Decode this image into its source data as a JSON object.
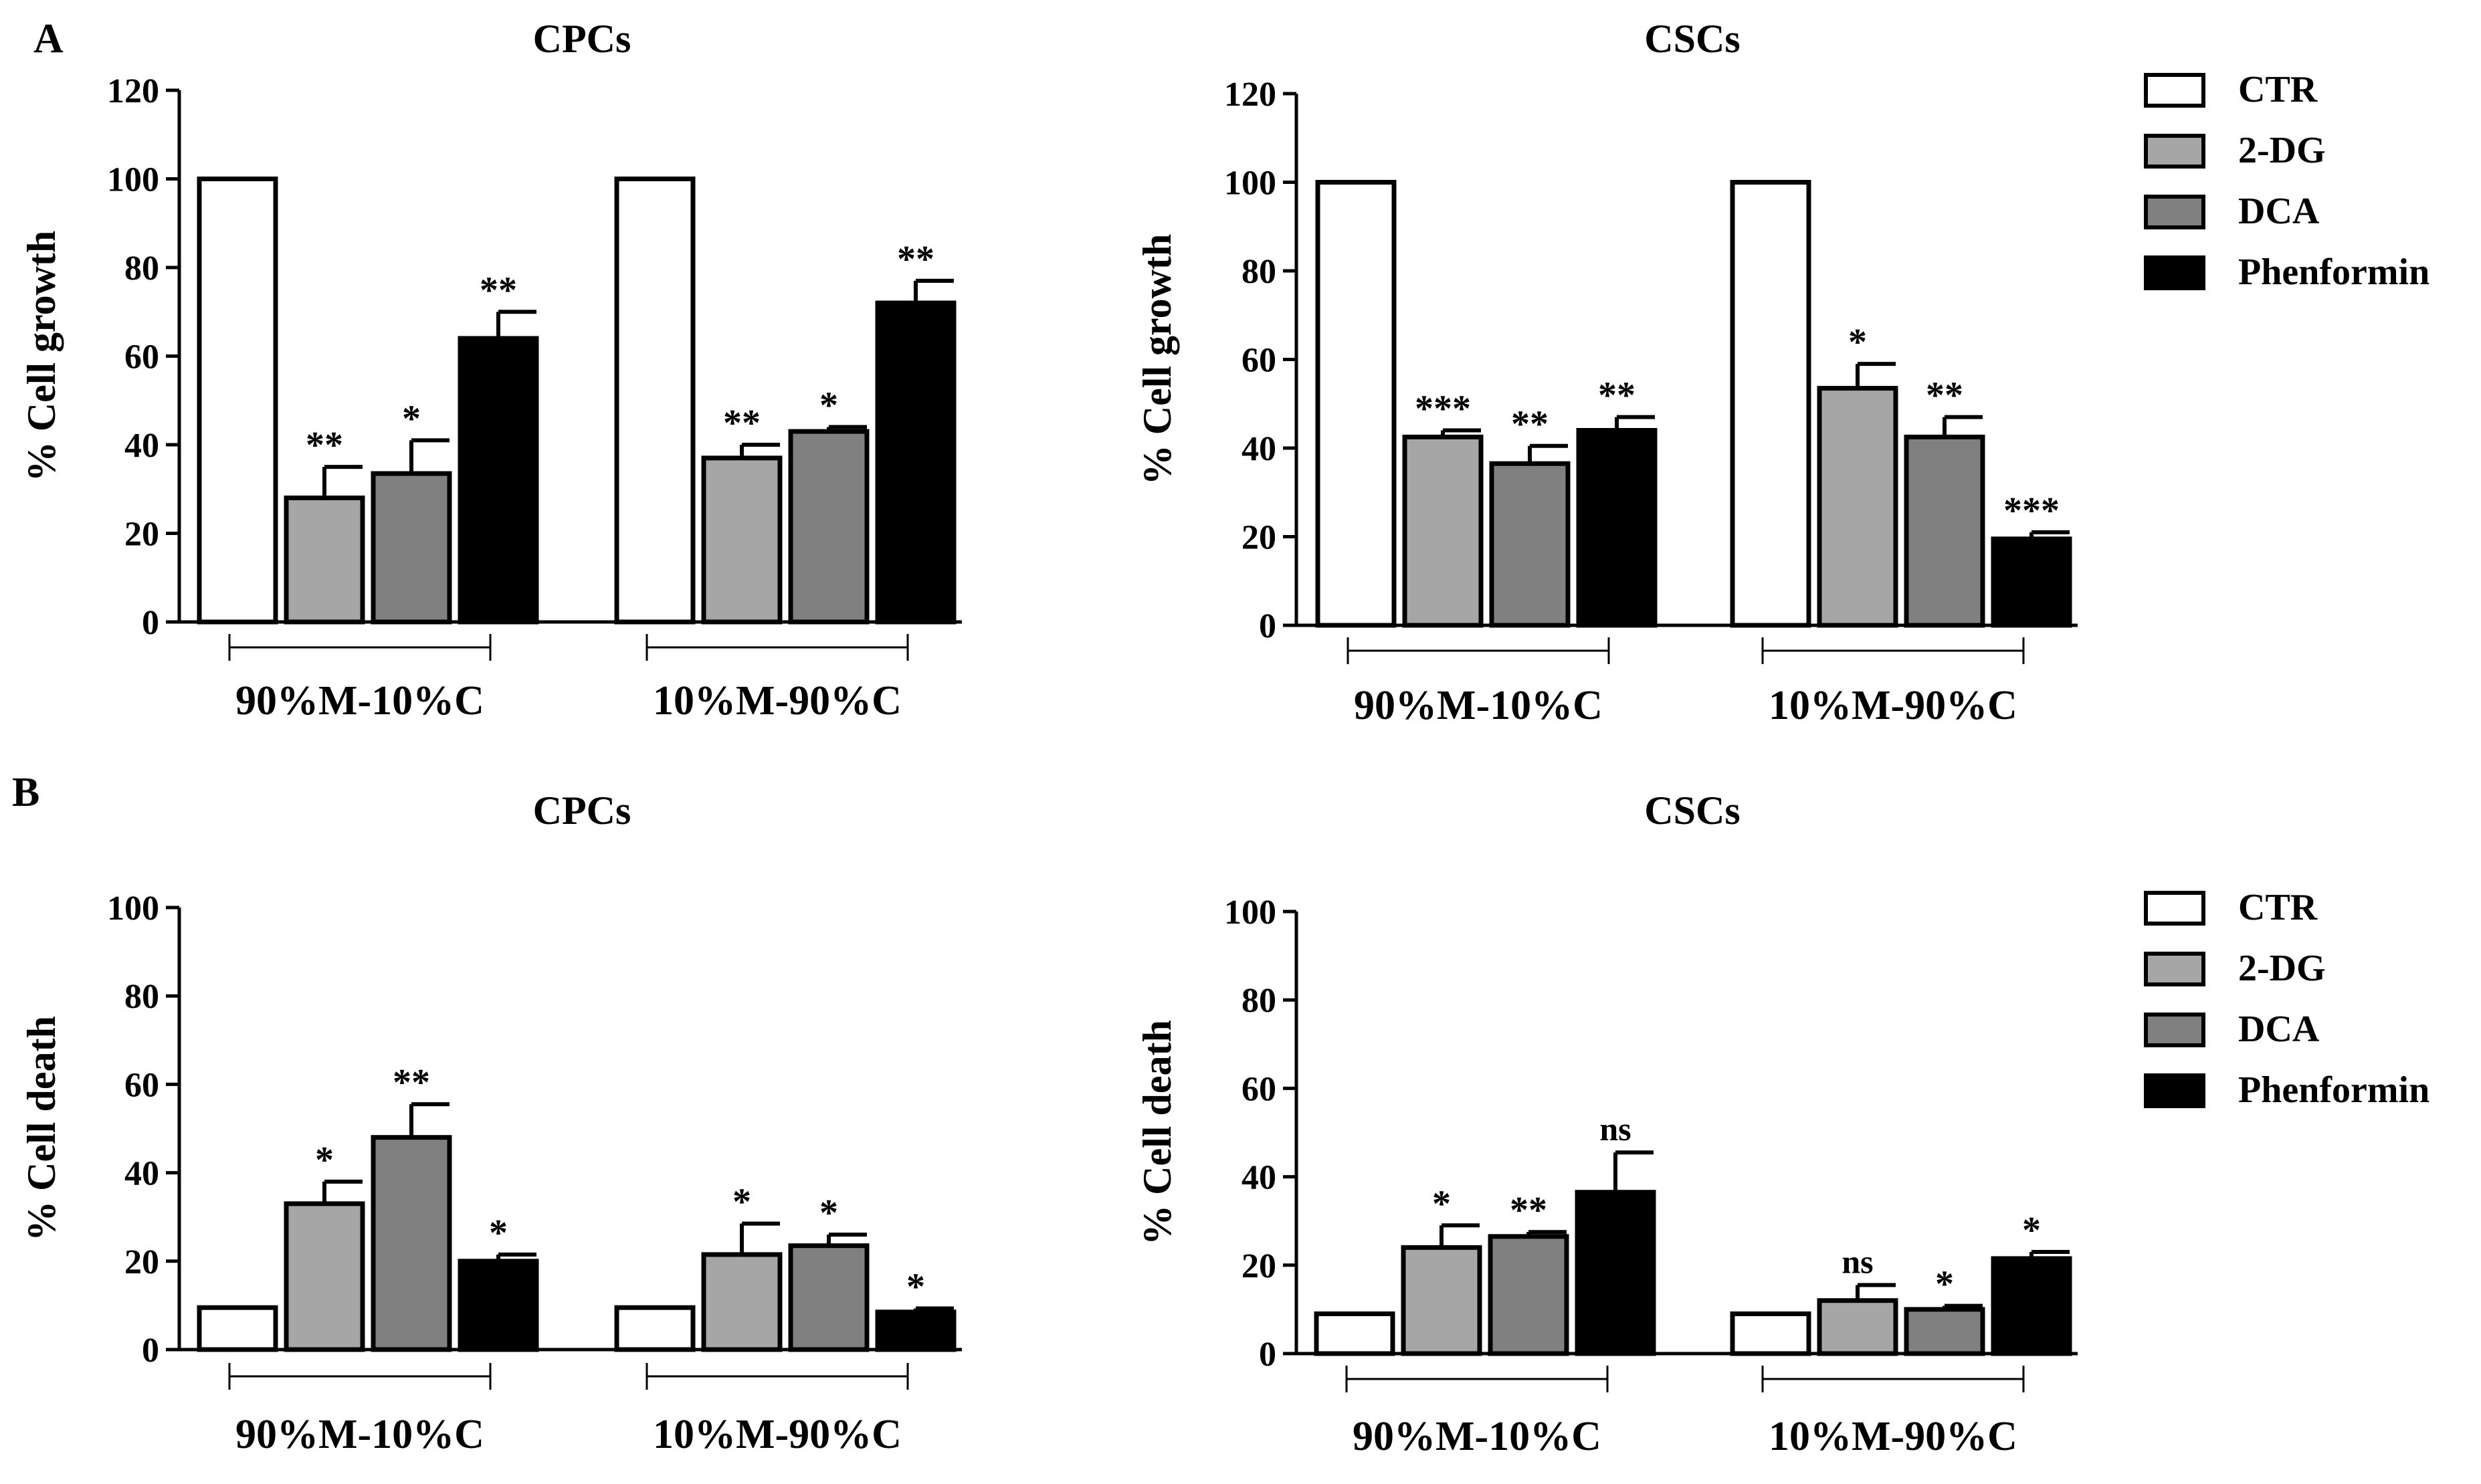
{
  "panel_labels": [
    "A",
    "B"
  ],
  "legend": {
    "items": [
      {
        "label": "CTR",
        "color": "#ffffff"
      },
      {
        "label": "2-DG",
        "color": "#a6a6a6"
      },
      {
        "label": "DCA",
        "color": "#808080"
      },
      {
        "label": "Phenformin",
        "color": "#000000"
      }
    ]
  },
  "chart_data": [
    {
      "type": "bar",
      "panel": "A",
      "title": "CPCs",
      "xlabel": "",
      "ylabel": "% Cell growth",
      "ylim": [
        0,
        120
      ],
      "yticks": [
        0,
        20,
        40,
        60,
        80,
        100,
        120
      ],
      "categories": [
        "90%M-10%C",
        "10%M-90%C"
      ],
      "series": [
        {
          "name": "CTR",
          "values": [
            100,
            100
          ],
          "errors": [
            0,
            0
          ],
          "annotations": [
            "",
            ""
          ]
        },
        {
          "name": "2-DG",
          "values": [
            28,
            37
          ],
          "errors": [
            7,
            3
          ],
          "annotations": [
            "**",
            "**"
          ]
        },
        {
          "name": "DCA",
          "values": [
            33.5,
            43
          ],
          "errors": [
            7.5,
            1
          ],
          "annotations": [
            "*",
            "*"
          ]
        },
        {
          "name": "Phenformin",
          "values": [
            64,
            72
          ],
          "errors": [
            6,
            5
          ],
          "annotations": [
            "**",
            "**"
          ]
        }
      ]
    },
    {
      "type": "bar",
      "panel": "A",
      "title": "CSCs",
      "xlabel": "",
      "ylabel": "% Cell growth",
      "ylim": [
        0,
        120
      ],
      "yticks": [
        0,
        20,
        40,
        60,
        80,
        100,
        120
      ],
      "categories": [
        "90%M-10%C",
        "10%M-90%C"
      ],
      "series": [
        {
          "name": "CTR",
          "values": [
            100,
            100
          ],
          "errors": [
            0,
            0
          ],
          "annotations": [
            "",
            ""
          ]
        },
        {
          "name": "2-DG",
          "values": [
            42.5,
            53.5
          ],
          "errors": [
            1.5,
            5.5
          ],
          "annotations": [
            "***",
            "*"
          ]
        },
        {
          "name": "DCA",
          "values": [
            36.5,
            42.5
          ],
          "errors": [
            4,
            4.5
          ],
          "annotations": [
            "**",
            "**"
          ]
        },
        {
          "name": "Phenformin",
          "values": [
            44,
            19.5
          ],
          "errors": [
            3,
            1.5
          ],
          "annotations": [
            "**",
            "***"
          ]
        }
      ]
    },
    {
      "type": "bar",
      "panel": "B",
      "title": "CPCs",
      "xlabel": "",
      "ylabel": "% Cell death",
      "ylim": [
        0,
        100
      ],
      "yticks": [
        0,
        20,
        40,
        60,
        80,
        100
      ],
      "categories": [
        "90%M-10%C",
        "10%M-90%C"
      ],
      "series": [
        {
          "name": "CTR",
          "values": [
            9.5,
            9.5
          ],
          "errors": [
            0,
            0
          ],
          "annotations": [
            "",
            ""
          ]
        },
        {
          "name": "2-DG",
          "values": [
            33,
            21.5
          ],
          "errors": [
            5,
            7
          ],
          "annotations": [
            "*",
            "*"
          ]
        },
        {
          "name": "DCA",
          "values": [
            48,
            23.5
          ],
          "errors": [
            7.5,
            2.5
          ],
          "annotations": [
            "**",
            "*"
          ]
        },
        {
          "name": "Phenformin",
          "values": [
            20,
            8.5
          ],
          "errors": [
            1.5,
            0.8
          ],
          "annotations": [
            "*",
            "*"
          ]
        }
      ]
    },
    {
      "type": "bar",
      "panel": "B",
      "title": "CSCs",
      "xlabel": "",
      "ylabel": "% Cell death",
      "ylim": [
        0,
        100
      ],
      "yticks": [
        0,
        20,
        40,
        60,
        80,
        100
      ],
      "categories": [
        "90%M-10%C",
        "10%M-90%C"
      ],
      "series": [
        {
          "name": "CTR",
          "values": [
            9,
            9
          ],
          "errors": [
            0,
            0
          ],
          "annotations": [
            "",
            ""
          ]
        },
        {
          "name": "2-DG",
          "values": [
            24,
            12
          ],
          "errors": [
            5,
            3.5
          ],
          "annotations": [
            "*",
            "ns"
          ]
        },
        {
          "name": "DCA",
          "values": [
            26.5,
            10
          ],
          "errors": [
            1,
            0.8
          ],
          "annotations": [
            "**",
            "*"
          ]
        },
        {
          "name": "Phenformin",
          "values": [
            36.5,
            21.5
          ],
          "errors": [
            9,
            1.5
          ],
          "annotations": [
            "ns",
            "*"
          ]
        }
      ]
    }
  ]
}
